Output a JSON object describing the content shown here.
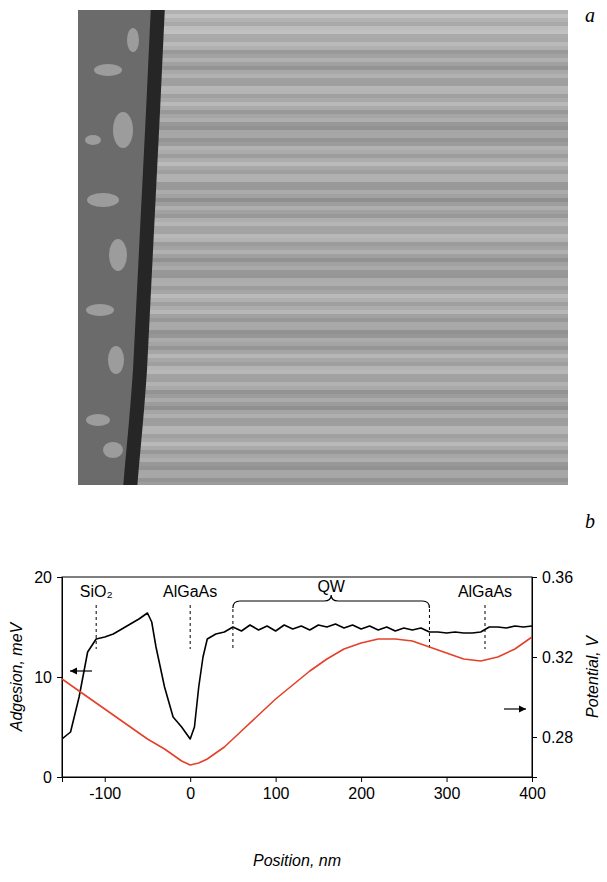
{
  "image_panel": {
    "label": "a"
  },
  "chart_data": {
    "type": "line",
    "panel_label": "b",
    "xlabel": "Position, nm",
    "ylabel": "Adgesion, meV",
    "y2label": "Potential, V",
    "xlim": [
      -150,
      400
    ],
    "xticks": [
      -100,
      0,
      100,
      200,
      300,
      400
    ],
    "ylim": [
      0,
      20
    ],
    "yticks": [
      0,
      10,
      20
    ],
    "y2lim": [
      0.26,
      0.36
    ],
    "y2ticks": [
      0.28,
      0.32,
      0.36
    ],
    "annotations": [
      {
        "text": "SiO₂",
        "x": -110
      },
      {
        "text": "AlGaAs",
        "x": 0
      },
      {
        "text": "QW",
        "x": [
          50,
          280
        ]
      },
      {
        "text": "AlGaAs",
        "x": 345
      }
    ],
    "series": [
      {
        "color": "#000000",
        "x": [
          -150,
          -140,
          -130,
          -120,
          -110,
          -100,
          -90,
          -80,
          -70,
          -60,
          -50,
          -45,
          -40,
          -30,
          -20,
          -10,
          0,
          5,
          10,
          15,
          20,
          30,
          40,
          50,
          60,
          70,
          80,
          90,
          100,
          110,
          120,
          130,
          140,
          150,
          160,
          170,
          180,
          190,
          200,
          210,
          220,
          230,
          240,
          250,
          260,
          270,
          280,
          290,
          300,
          310,
          320,
          330,
          340,
          350,
          360,
          370,
          380,
          390,
          400
        ],
        "values": [
          3.8,
          4.5,
          8,
          12.5,
          13.8,
          14,
          14.3,
          14.8,
          15.3,
          15.8,
          16.4,
          15.5,
          13,
          9,
          6,
          5,
          3.8,
          5,
          9,
          12,
          13.8,
          14.3,
          14.5,
          15,
          14.6,
          15.2,
          14.7,
          15.1,
          14.6,
          15.2,
          14.8,
          15.1,
          14.7,
          15.2,
          15,
          15.3,
          14.9,
          15.2,
          14.8,
          15.1,
          14.7,
          15,
          14.6,
          14.9,
          14.7,
          14.9,
          14.5,
          14.5,
          14.4,
          14.5,
          14.4,
          14.4,
          14.5,
          15,
          15,
          14.9,
          15.1,
          15,
          15.1
        ]
      },
      {
        "color": "#e5402a",
        "axis": "y2",
        "x": [
          -150,
          -130,
          -110,
          -90,
          -70,
          -50,
          -30,
          -20,
          -10,
          0,
          10,
          20,
          40,
          60,
          80,
          100,
          120,
          140,
          160,
          180,
          200,
          220,
          240,
          260,
          280,
          300,
          320,
          340,
          360,
          380,
          400
        ],
        "values": [
          0.309,
          0.303,
          0.297,
          0.291,
          0.285,
          0.279,
          0.274,
          0.271,
          0.268,
          0.266,
          0.267,
          0.269,
          0.275,
          0.283,
          0.291,
          0.299,
          0.306,
          0.313,
          0.319,
          0.324,
          0.327,
          0.329,
          0.329,
          0.328,
          0.325,
          0.322,
          0.319,
          0.318,
          0.32,
          0.324,
          0.33
        ]
      }
    ]
  }
}
